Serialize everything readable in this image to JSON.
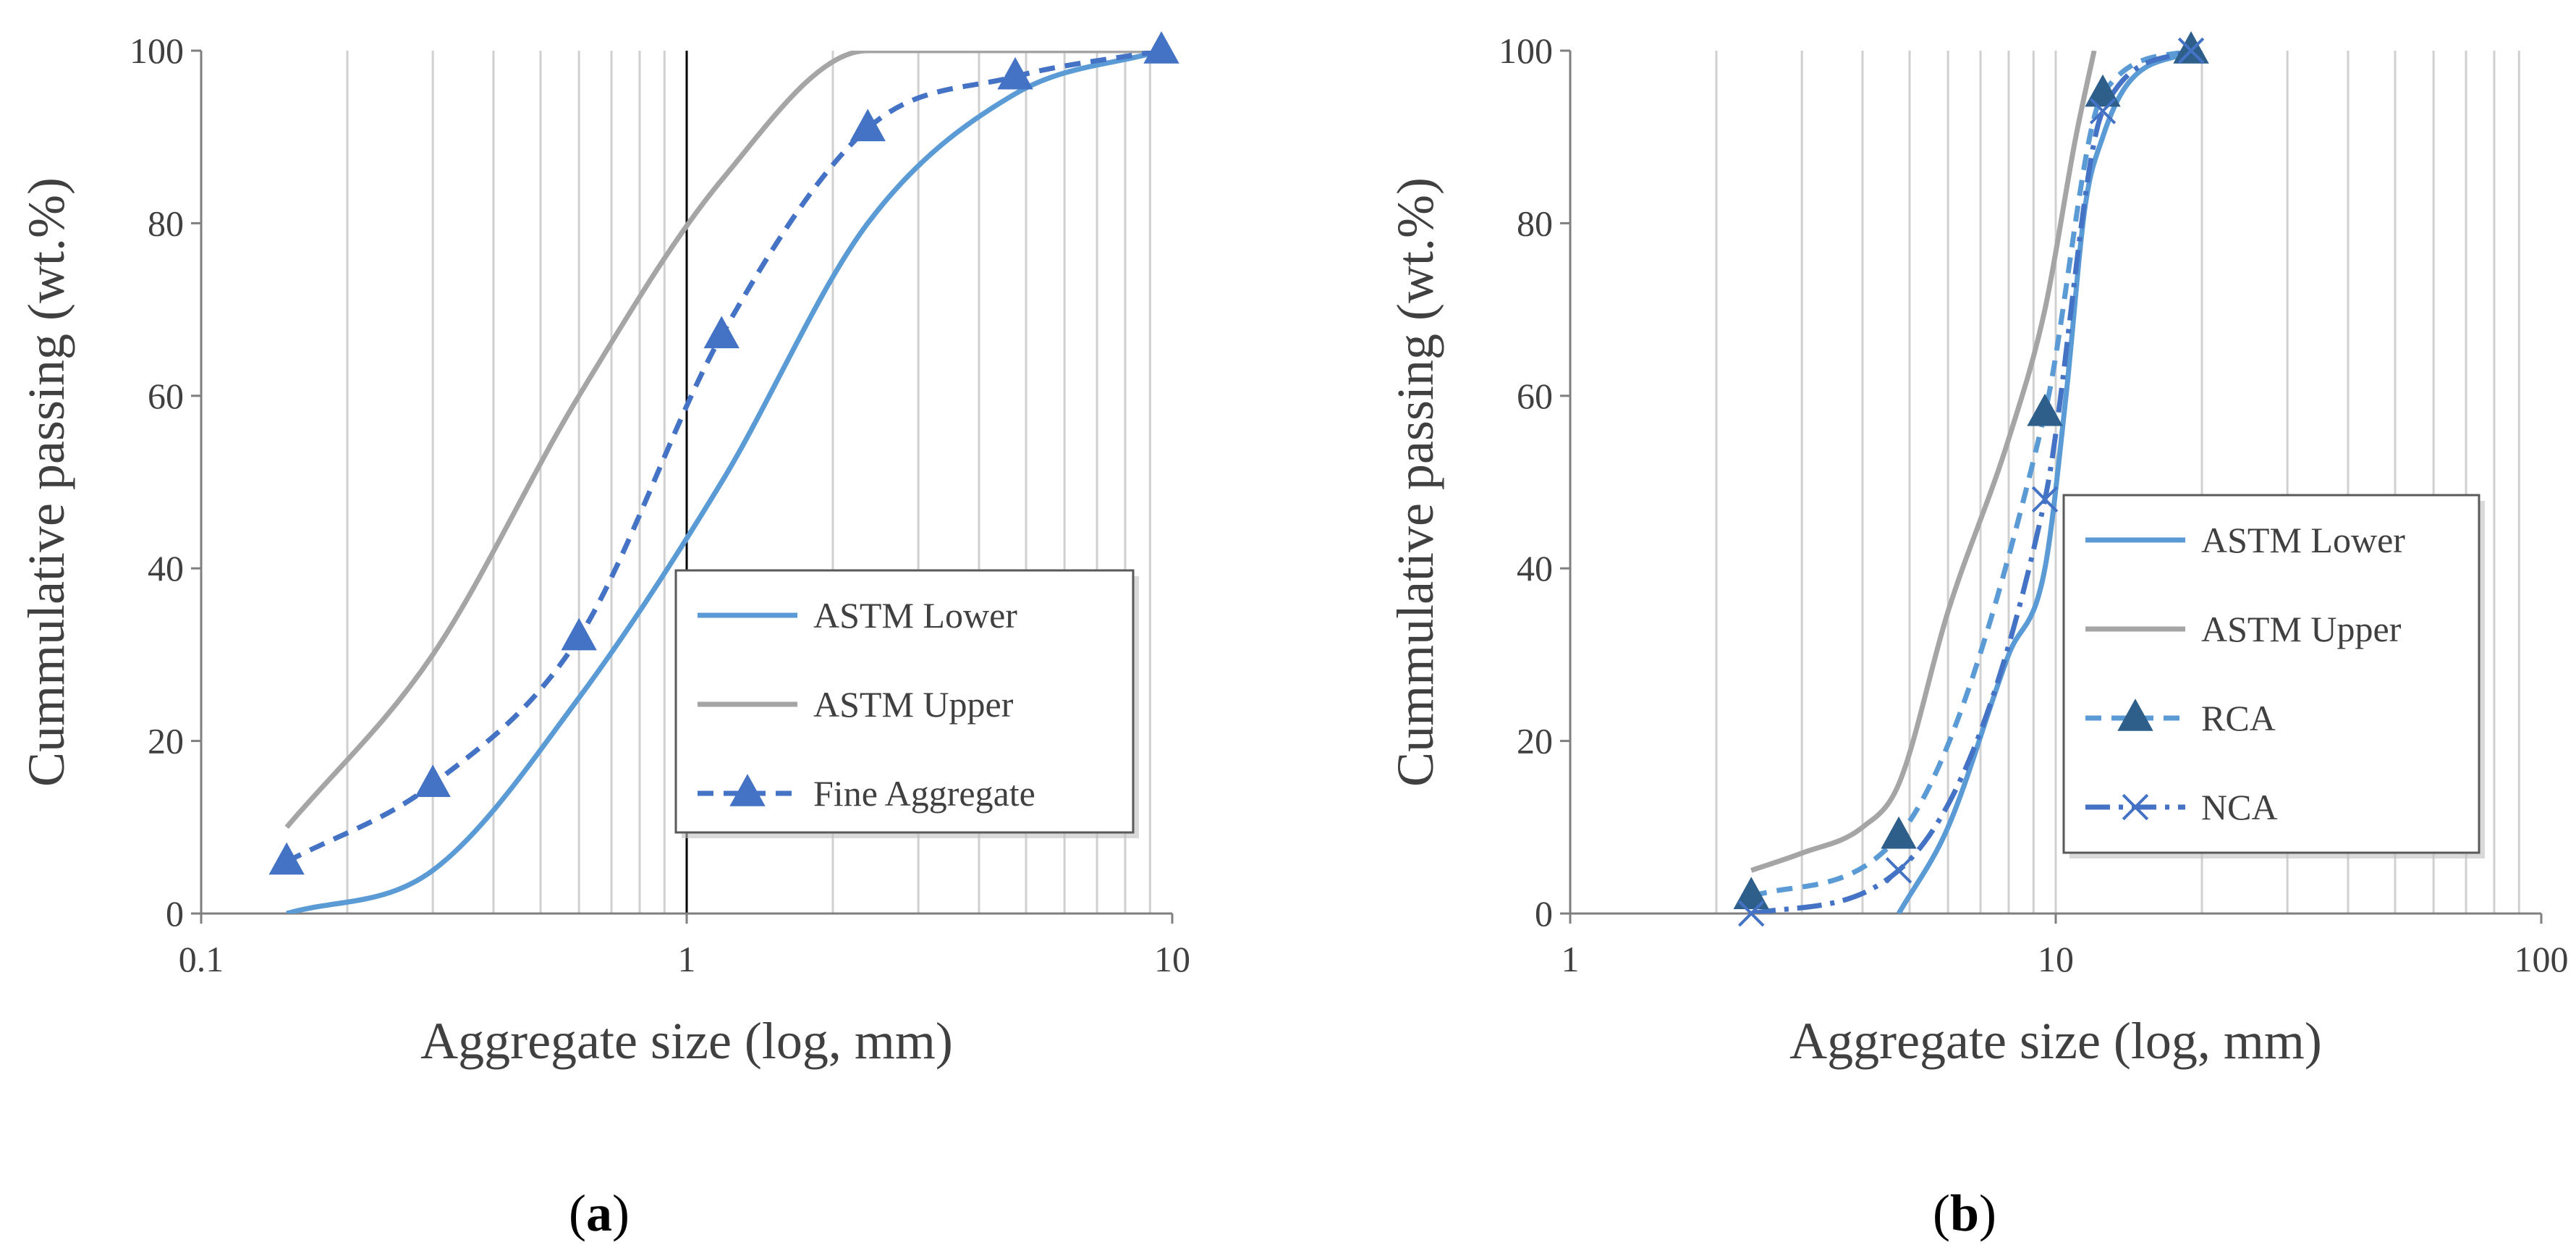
{
  "chart_data": [
    {
      "type": "line",
      "panel_label": "a",
      "xlabel": "Aggregate  size (log, mm)",
      "ylabel": "Cummulative  passing  (wt.%)",
      "x_scale": "log",
      "xlim": [
        0.1,
        10
      ],
      "ylim": [
        0,
        100
      ],
      "x_ticks": [
        {
          "v": 0.1,
          "label": "0.1"
        },
        {
          "v": 1,
          "label": "1"
        },
        {
          "v": 10,
          "label": "10"
        }
      ],
      "y_ticks": [
        {
          "v": 0,
          "label": "0"
        },
        {
          "v": 20,
          "label": "20"
        },
        {
          "v": 40,
          "label": "40"
        },
        {
          "v": 60,
          "label": "60"
        },
        {
          "v": 80,
          "label": "80"
        },
        {
          "v": 100,
          "label": "100"
        }
      ],
      "minor_gridlines_x": [
        0.2,
        0.3,
        0.4,
        0.5,
        0.6,
        0.7,
        0.8,
        0.9,
        2,
        3,
        4,
        5,
        6,
        7,
        8,
        9
      ],
      "major_gridlines_x": [
        1
      ],
      "legend": {
        "position": "center-right",
        "entries": [
          "ASTM Lower",
          "ASTM Upper",
          "Fine Aggregate"
        ]
      },
      "series": [
        {
          "name": "ASTM Lower",
          "color": "#5b9bd5",
          "dash": "solid",
          "marker": "none",
          "x": [
            0.15,
            0.3,
            0.6,
            1.18,
            2.36,
            4.75,
            9.5
          ],
          "y": [
            0,
            5,
            25,
            50,
            80,
            95,
            100
          ]
        },
        {
          "name": "ASTM Upper",
          "color": "#a5a5a5",
          "dash": "solid",
          "marker": "none",
          "x": [
            0.15,
            0.3,
            0.6,
            1.18,
            2.36,
            4.75,
            9.5
          ],
          "y": [
            10,
            30,
            60,
            85,
            100,
            100,
            100
          ]
        },
        {
          "name": "Fine Aggregate",
          "color": "#4472c4",
          "dash": "dashed",
          "marker": "triangle",
          "x": [
            0.15,
            0.3,
            0.6,
            1.18,
            2.36,
            4.75,
            9.5
          ],
          "y": [
            6,
            15,
            32,
            67,
            91,
            97,
            100
          ]
        }
      ]
    },
    {
      "type": "line",
      "panel_label": "b",
      "xlabel": "Aggregate  size (log, mm)",
      "ylabel": "Cummulative  passing  (wt.%)",
      "x_scale": "log",
      "xlim": [
        1,
        100
      ],
      "ylim": [
        0,
        100
      ],
      "x_ticks": [
        {
          "v": 1,
          "label": "1"
        },
        {
          "v": 10,
          "label": "10"
        },
        {
          "v": 100,
          "label": "100"
        }
      ],
      "y_ticks": [
        {
          "v": 0,
          "label": "0"
        },
        {
          "v": 20,
          "label": "20"
        },
        {
          "v": 40,
          "label": "40"
        },
        {
          "v": 60,
          "label": "60"
        },
        {
          "v": 80,
          "label": "80"
        },
        {
          "v": 100,
          "label": "100"
        }
      ],
      "minor_gridlines_x": [
        2,
        3,
        4,
        5,
        6,
        7,
        8,
        9,
        10,
        20,
        30,
        40,
        50,
        60,
        70,
        80,
        90
      ],
      "major_gridlines_x": [],
      "legend": {
        "position": "center-right",
        "entries": [
          "ASTM Lower",
          "ASTM Upper",
          "RCA",
          "NCA"
        ]
      },
      "series": [
        {
          "name": "ASTM Lower",
          "color": "#5b9bd5",
          "dash": "solid",
          "marker": "none",
          "x": [
            4.75,
            6,
            8,
            9.5,
            10.5,
            11.5,
            12.5,
            14,
            19
          ],
          "y": [
            0,
            10,
            30,
            40,
            60,
            82,
            90,
            96,
            100
          ]
        },
        {
          "name": "ASTM Upper",
          "color": "#a5a5a5",
          "dash": "solid",
          "marker": "none",
          "x": [
            2.36,
            3,
            4,
            4.75,
            6,
            8,
            9.5,
            11,
            12
          ],
          "y": [
            5,
            7,
            10,
            15,
            35,
            55,
            70,
            90,
            100
          ]
        },
        {
          "name": "RCA",
          "color": "#5b9bd5",
          "marker_color": "#2e5f8a",
          "dash": "dashed",
          "marker": "filled-triangle",
          "x": [
            2.36,
            4.75,
            9.5,
            12.5,
            19
          ],
          "y": [
            2,
            9,
            58,
            95,
            100
          ]
        },
        {
          "name": "NCA",
          "color": "#4472c4",
          "dash": "dashdot",
          "marker": "x",
          "x": [
            2.36,
            4.75,
            9.5,
            12.5,
            19
          ],
          "y": [
            0,
            5,
            48,
            93,
            100
          ]
        }
      ]
    }
  ]
}
